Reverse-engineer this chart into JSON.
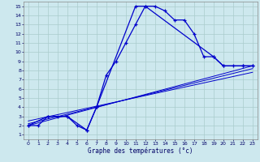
{
  "xlabel": "Graphe des températures (°c)",
  "bg_color": "#cde8ee",
  "grid_color": "#aacccc",
  "line_color": "#0000cc",
  "xlim": [
    -0.5,
    23.5
  ],
  "ylim": [
    0.5,
    15.5
  ],
  "xticks": [
    0,
    1,
    2,
    3,
    4,
    5,
    6,
    7,
    8,
    9,
    10,
    11,
    12,
    13,
    14,
    15,
    16,
    17,
    18,
    19,
    20,
    21,
    22,
    23
  ],
  "yticks": [
    1,
    2,
    3,
    4,
    5,
    6,
    7,
    8,
    9,
    10,
    11,
    12,
    13,
    14,
    15
  ],
  "curve_main_x": [
    0,
    1,
    2,
    3,
    4,
    5,
    6,
    7,
    8,
    9,
    10,
    11,
    12,
    13,
    14,
    15,
    16,
    17,
    18,
    19,
    20,
    21,
    22,
    23
  ],
  "curve_main_y": [
    2,
    2,
    3,
    3,
    3,
    2,
    1.5,
    4,
    7.5,
    9,
    11,
    13,
    15,
    15,
    14.5,
    13.5,
    13.5,
    12,
    9.5,
    9.5,
    8.5,
    8.5,
    8.5,
    8.5
  ],
  "curve_minmax_x": [
    0,
    2,
    4,
    6,
    7,
    11,
    12,
    19,
    20,
    22,
    23
  ],
  "curve_minmax_y": [
    2,
    3,
    3,
    1.5,
    4,
    15,
    15,
    9.5,
    8.5,
    8.5,
    8.5
  ],
  "line1_x": [
    0,
    23
  ],
  "line1_y": [
    2.0,
    8.5
  ],
  "line2_x": [
    0,
    23
  ],
  "line2_y": [
    2.2,
    8.2
  ],
  "line3_x": [
    0,
    23
  ],
  "line3_y": [
    2.5,
    7.8
  ],
  "marker_size": 3.5
}
